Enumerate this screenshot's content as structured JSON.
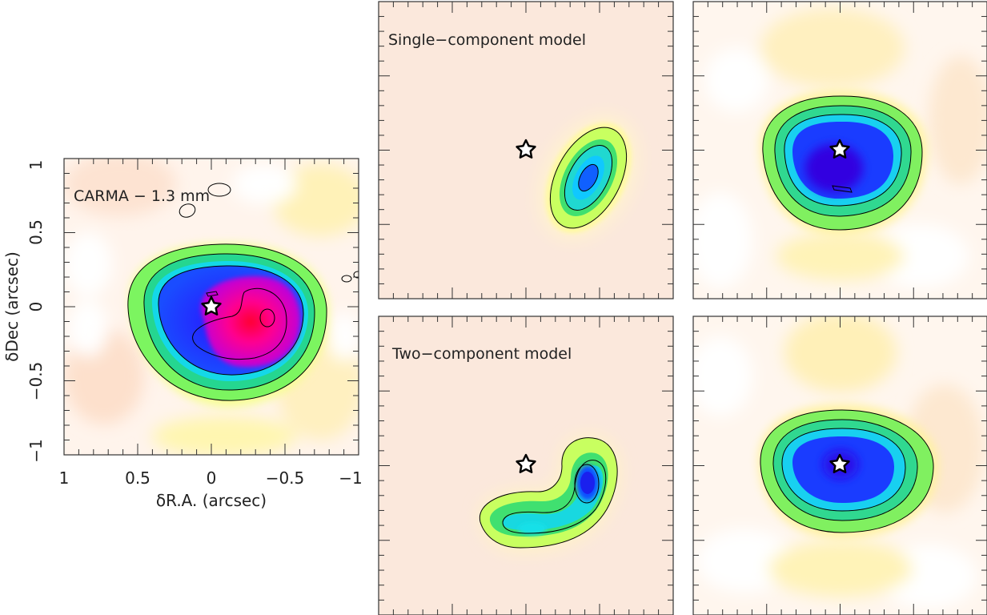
{
  "figure": {
    "axis_labels": {
      "xlabel": "δR.A. (arcsec)",
      "ylabel": "δDec (arcsec)"
    },
    "x_ticks": [
      "1",
      "0.5",
      "0",
      "−0.5",
      "−1"
    ],
    "y_ticks": [
      "1",
      "0.5",
      "0",
      "−0.5",
      "−1"
    ]
  },
  "panels": [
    {
      "title": "CARMA − 1.3 mm"
    },
    {
      "title": "Single−component model"
    },
    {
      "title": ""
    },
    {
      "title": "Two−component model"
    },
    {
      "title": ""
    }
  ],
  "colors": {
    "background": "#fbe8dc",
    "contour": "#000000",
    "star_fill": "#ffffff",
    "star_stroke": "#000000",
    "colormap": [
      "#ffffff",
      "#fde6d6",
      "#fff3a0",
      "#e8ff60",
      "#9aff55",
      "#33e06a",
      "#14e2e0",
      "#0aa8ff",
      "#1a3cff",
      "#2a00e8",
      "#7a00e0",
      "#d200c8",
      "#ff0078",
      "#ff0030"
    ]
  },
  "chart_data": [
    {
      "type": "heatmap",
      "title": "CARMA − 1.3 mm",
      "xlabel": "δR.A. (arcsec)",
      "ylabel": "δDec (arcsec)",
      "xlim": [
        1,
        -1
      ],
      "ylim": [
        -1,
        1
      ],
      "x_ticks": [
        1,
        0.5,
        0,
        -0.5,
        -1
      ],
      "y_ticks": [
        1,
        0.5,
        0,
        -0.5,
        -1
      ],
      "star_position": [
        0,
        0
      ],
      "emission_peak": [
        -0.38,
        -0.07
      ]
    },
    {
      "type": "heatmap",
      "title": "Single−component model",
      "xlim": [
        1,
        -1
      ],
      "ylim": [
        -1,
        1
      ],
      "star_position": [
        0,
        0
      ],
      "emission_peak": [
        -0.43,
        -0.18
      ]
    },
    {
      "type": "heatmap",
      "title": "",
      "xlim": [
        1,
        -1
      ],
      "ylim": [
        -1,
        1
      ],
      "star_position": [
        0,
        0
      ],
      "emission_peak": [
        0,
        -0.1
      ]
    },
    {
      "type": "heatmap",
      "title": "Two−component model",
      "xlim": [
        1,
        -1
      ],
      "ylim": [
        -1,
        1
      ],
      "star_position": [
        0,
        0
      ],
      "emission_peak": [
        -0.43,
        -0.12
      ]
    },
    {
      "type": "heatmap",
      "title": "",
      "xlim": [
        1,
        -1
      ],
      "ylim": [
        -1,
        1
      ],
      "star_position": [
        0,
        0
      ],
      "emission_peak": [
        0.05,
        0
      ]
    }
  ]
}
